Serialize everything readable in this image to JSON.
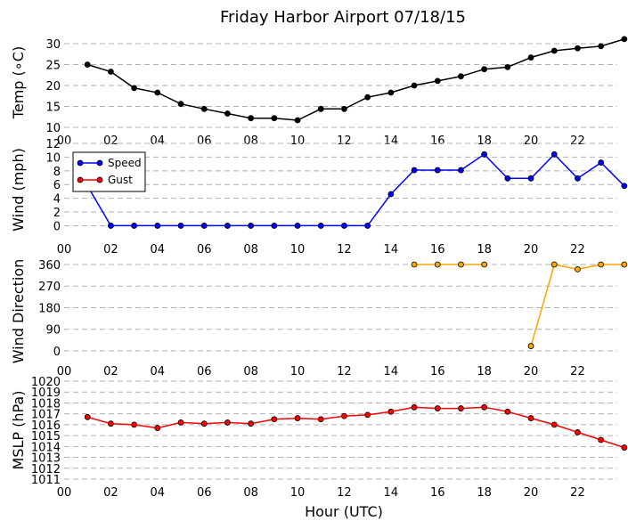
{
  "chart_data": {
    "type": "line",
    "title": "Friday Harbor Airport 07/18/15",
    "xlabel": "Hour (UTC)",
    "x_tick_labels": [
      "00",
      "02",
      "04",
      "06",
      "08",
      "10",
      "12",
      "14",
      "16",
      "18",
      "20",
      "22"
    ],
    "xlim": [
      0,
      23.7
    ],
    "grid": "horizontal-dashed",
    "panels": [
      {
        "ylabel": "Temp ($^\\circ$C)",
        "ylabel_display": "Temp (∘C)",
        "ylim": [
          10,
          31.5
        ],
        "yticks": [
          10,
          15,
          20,
          25,
          30
        ],
        "series": [
          {
            "color": "#000000",
            "x": [
              1,
              2,
              3,
              4,
              5,
              6,
              7,
              8,
              9,
              10,
              11,
              12,
              13,
              14,
              15,
              16,
              17,
              18,
              19,
              20,
              21,
              22,
              23,
              24
            ],
            "values": [
              25,
              23.3,
              19.4,
              18.3,
              15.6,
              14.4,
              13.3,
              12.2,
              12.2,
              11.7,
              14.4,
              14.4,
              17.2,
              18.3,
              20,
              21.1,
              22.2,
              23.9,
              24.4,
              26.7,
              28.3,
              28.9,
              29.4,
              31.1
            ]
          }
        ]
      },
      {
        "ylabel": "Wind (mph)",
        "ylim": [
          -1.5,
          12
        ],
        "yticks": [
          0,
          2,
          4,
          6,
          8,
          10,
          12
        ],
        "legend": {
          "position": "upper-left"
        },
        "series": [
          {
            "name": "Speed",
            "color": "#0000ff",
            "x": [
              1,
              2,
              3,
              4,
              5,
              6,
              7,
              8,
              9,
              10,
              11,
              12,
              13,
              14,
              15,
              16,
              17,
              18,
              19,
              20,
              21,
              22,
              23,
              24
            ],
            "values": [
              5.8,
              0,
              0,
              0,
              0,
              0,
              0,
              0,
              0,
              0,
              0,
              0,
              0,
              4.6,
              8.1,
              8.1,
              8.1,
              10.4,
              6.9,
              6.9,
              10.4,
              6.9,
              9.2,
              5.8
            ]
          },
          {
            "name": "Gust",
            "color": "#ff0000",
            "x": [],
            "values": []
          }
        ]
      },
      {
        "ylabel": "Wind Direction",
        "ylim": [
          -30,
          360
        ],
        "yticks": [
          0,
          90,
          180,
          270,
          360
        ],
        "series": [
          {
            "color": "#ffa500",
            "segments": [
              {
                "x": [
                  15,
                  16,
                  17,
                  18
                ],
                "values": [
                  360,
                  360,
                  360,
                  360
                ]
              },
              {
                "x": [
                  20,
                  21,
                  22,
                  23,
                  24
                ],
                "values": [
                  20,
                  360,
                  340,
                  360,
                  360
                ]
              }
            ]
          }
        ]
      },
      {
        "ylabel": "MSLP (hPa)",
        "ylim": [
          1011,
          1020
        ],
        "yticks": [
          1011,
          1012,
          1013,
          1014,
          1015,
          1016,
          1017,
          1018,
          1019,
          1020
        ],
        "series": [
          {
            "color": "#ff0000",
            "x": [
              1,
              2,
              3,
              4,
              5,
              6,
              7,
              8,
              9,
              10,
              11,
              12,
              13,
              14,
              15,
              16,
              17,
              18,
              19,
              20,
              21,
              22,
              23,
              24
            ],
            "values": [
              1016.7,
              1016.1,
              1016,
              1015.7,
              1016.2,
              1016.1,
              1016.2,
              1016.1,
              1016.5,
              1016.6,
              1016.5,
              1016.8,
              1016.9,
              1017.2,
              1017.6,
              1017.5,
              1017.5,
              1017.6,
              1017.2,
              1016.6,
              1016,
              1015.3,
              1014.6,
              1013.9
            ]
          }
        ]
      }
    ]
  }
}
